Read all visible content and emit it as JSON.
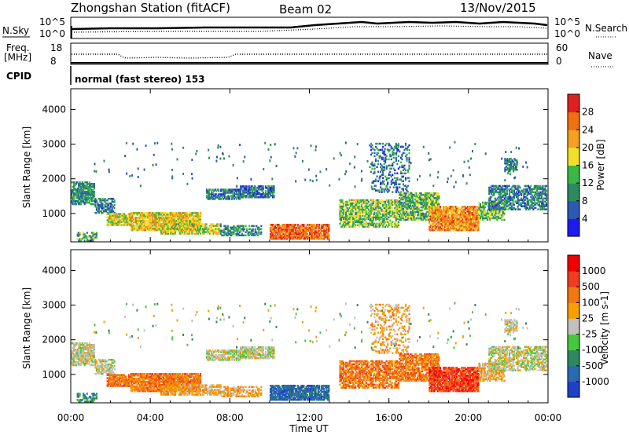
{
  "header": {
    "station_title": "Zhongshan Station (fitACF)",
    "beam": "Beam 02",
    "date": "13/Nov/2015"
  },
  "status_panels": {
    "nsky_label": "N.Sky",
    "nsearch_label": "N.Search",
    "noise_ticks": [
      "10^5",
      "10^0"
    ],
    "freq_label_1": "Freq.",
    "freq_label_2": "[MHz]",
    "freq_ticks": [
      "18",
      "8"
    ],
    "nave_label": "Nave",
    "nave_ticks": [
      "60",
      "0"
    ],
    "cpid_label": "CPID",
    "cpid_text": "normal (fast stereo) 153"
  },
  "chart_data": [
    {
      "type": "heatmap",
      "name": "power",
      "xlabel": "Time UT",
      "ylabel": "Slant Range [km]",
      "x_ticks": [
        "00:00",
        "04:00",
        "08:00",
        "12:00",
        "16:00",
        "20:00",
        "00:00"
      ],
      "x_tick_hours": [
        0,
        4,
        8,
        12,
        16,
        20,
        24
      ],
      "xlim_hours": [
        0,
        24
      ],
      "y_ticks": [
        1000,
        2000,
        3000,
        4000
      ],
      "ylim": [
        180,
        4600
      ],
      "colorbar": {
        "label": "Power [dB]",
        "tick_labels": [
          "4",
          "8",
          "12",
          "16",
          "20",
          "24",
          "28"
        ],
        "tick_values": [
          4,
          8,
          12,
          16,
          20,
          24,
          28
        ],
        "range": [
          0,
          32
        ],
        "colors": [
          "#1c1cf0",
          "#2a5ab4",
          "#2e8a5e",
          "#39b845",
          "#f0e02a",
          "#f5a020",
          "#f07010",
          "#e02020"
        ]
      }
    },
    {
      "type": "heatmap",
      "name": "velocity",
      "xlabel": "Time UT",
      "ylabel": "Slant Range [km]",
      "x_ticks": [
        "00:00",
        "04:00",
        "08:00",
        "12:00",
        "16:00",
        "20:00",
        "00:00"
      ],
      "x_tick_hours": [
        0,
        4,
        8,
        12,
        16,
        20,
        24
      ],
      "xlim_hours": [
        0,
        24
      ],
      "y_ticks": [
        1000,
        2000,
        3000,
        4000
      ],
      "ylim": [
        180,
        4600
      ],
      "colorbar": {
        "label": "Velocity [m s-1]",
        "tick_labels": [
          "1000",
          "500",
          "100",
          "25",
          "-25",
          "-100",
          "-500",
          "-1000"
        ],
        "colors": [
          "#2040c8",
          "#2a6ab0",
          "#2e8a5e",
          "#46c83c",
          "#c0c0c0",
          "#f5a000",
          "#f07810",
          "#f03c20",
          "#f00000"
        ]
      }
    }
  ]
}
